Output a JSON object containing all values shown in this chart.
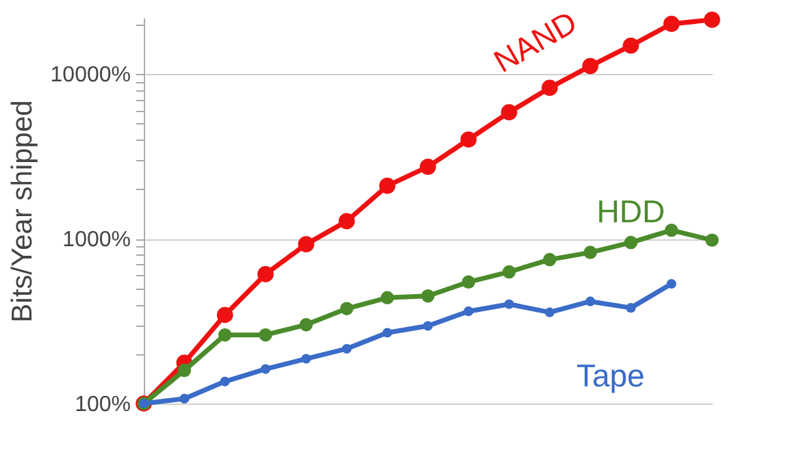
{
  "chart_data": {
    "type": "line",
    "ylabel": "Bits/Year shipped",
    "categories": [
      null,
      null,
      null,
      null,
      null,
      null,
      null,
      null,
      null,
      null,
      null,
      null,
      null,
      null,
      null
    ],
    "series": [
      {
        "name": "NAND",
        "color": "#ee1111",
        "values": [
          100,
          177,
          345,
          610,
          927,
          1280,
          2100,
          2740,
          4010,
          5870,
          8260,
          11200,
          14900,
          20200,
          21400
        ]
      },
      {
        "name": "HDD",
        "color": "#4b8b2b",
        "values": [
          100,
          159,
          261,
          261,
          301,
          377,
          439,
          450,
          547,
          630,
          748,
          827,
          950,
          1128,
          982
        ]
      },
      {
        "name": "Tape",
        "color": "#3a6cc8",
        "values": [
          100,
          107,
          136,
          162,
          187,
          215,
          269,
          296,
          363,
          401,
          358,
          417,
          381,
          533,
          null
        ]
      }
    ],
    "log": "y",
    "ylim": [
      100,
      22000
    ],
    "yticks": [
      {
        "value": 100,
        "label": "100%"
      },
      {
        "value": 200,
        "label": null
      },
      {
        "value": 300,
        "label": null
      },
      {
        "value": 400,
        "label": null
      },
      {
        "value": 500,
        "label": null
      },
      {
        "value": 600,
        "label": null
      },
      {
        "value": 700,
        "label": null
      },
      {
        "value": 800,
        "label": null
      },
      {
        "value": 900,
        "label": null
      },
      {
        "value": 1000,
        "label": "1000%"
      },
      {
        "value": 2000,
        "label": null
      },
      {
        "value": 3000,
        "label": null
      },
      {
        "value": 4000,
        "label": null
      },
      {
        "value": 5000,
        "label": null
      },
      {
        "value": 6000,
        "label": null
      },
      {
        "value": 7000,
        "label": null
      },
      {
        "value": 8000,
        "label": null
      },
      {
        "value": 9000,
        "label": null
      },
      {
        "value": 10000,
        "label": "10000%"
      },
      {
        "value": 20000,
        "label": null
      }
    ],
    "grid": "y",
    "legend": false,
    "marker": "circle",
    "line_style": "solid"
  }
}
